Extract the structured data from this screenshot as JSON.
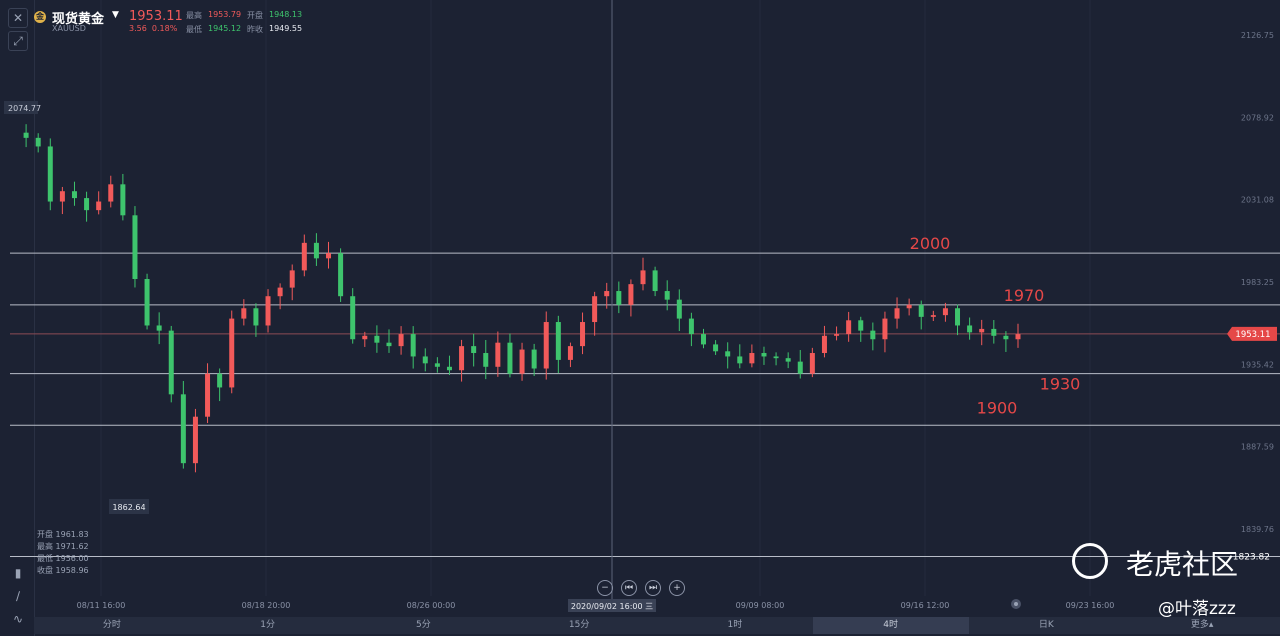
{
  "header": {
    "instrument_name": "现货黄金",
    "instrument_code": "XAUUSD",
    "coin_glyph": "金",
    "last_price": "1953.11",
    "change": "3.56",
    "change_pct": "0.18%",
    "high_label": "最高",
    "high_value": "1953.79",
    "low_label": "最低",
    "low_value": "1945.12",
    "open_label": "开盘",
    "open_value": "1948.13",
    "prev_close_label": "昨收",
    "prev_close_value": "1949.55"
  },
  "ohlc_panel": {
    "open": "开盘 1961.83",
    "high": "最高 1971.62",
    "low": "最低 1956.00",
    "close": "收盘 1958.96"
  },
  "chart_data": {
    "type": "candlestick",
    "y_axis_ticks": [
      "2126.75",
      "2078.92",
      "2031.08",
      "1983.25",
      "1935.42",
      "1887.59",
      "1839.76"
    ],
    "y_axis_tick_values": [
      2126.75,
      2078.92,
      2031.08,
      1983.25,
      1935.42,
      1887.59,
      1839.76
    ],
    "x_axis_labels": [
      "08/11 16:00",
      "08/18 20:00",
      "08/26 00:00",
      "09/09 08:00",
      "09/16 12:00",
      "09/23 16:00"
    ],
    "crosshair_x_label": "2020/09/02 16:00 三",
    "current_price_tag": "1953.11",
    "max_marker": "2074.77",
    "min_marker": "1862.64",
    "bottom_right_marker": "1823.82",
    "horizontal_lines": [
      2000,
      1970,
      1953.11,
      1930,
      1900,
      1823.82
    ],
    "annotations": [
      {
        "text": "2000",
        "value": 2000
      },
      {
        "text": "1970",
        "value": 1970
      },
      {
        "text": "1930",
        "value": 1930
      },
      {
        "text": "1900",
        "value": 1900
      }
    ],
    "up_color": "#f25a5a",
    "down_color": "#3ec46d",
    "close_path": [
      2070,
      2067,
      2062,
      2030,
      2036,
      2032,
      2025,
      2030,
      2040,
      2022,
      1985,
      1958,
      1955,
      1918,
      1878,
      1905,
      1930,
      1922,
      1962,
      1968,
      1958,
      1975,
      1980,
      1990,
      2006,
      1997,
      2000,
      1975,
      1950,
      1952,
      1948,
      1946,
      1953,
      1940,
      1936,
      1934,
      1932,
      1946,
      1942,
      1934,
      1948,
      1930,
      1944,
      1933,
      1960,
      1938,
      1946,
      1960,
      1975,
      1978,
      1970,
      1982,
      1990,
      1978,
      1973,
      1962,
      1953,
      1947,
      1943,
      1940,
      1936,
      1942,
      1940,
      1939,
      1937,
      1930,
      1942,
      1952,
      1953,
      1961,
      1955,
      1950,
      1962,
      1968,
      1970,
      1963,
      1964,
      1968,
      1958,
      1954,
      1956,
      1952,
      1950,
      1953
    ]
  },
  "toolbar": {
    "nav_zoom_out": "−",
    "nav_prev": "⏮",
    "nav_next": "⏭",
    "nav_zoom_in": "+"
  },
  "tabs": [
    "分时",
    "1分",
    "5分",
    "15分",
    "1时",
    "4时",
    "日K",
    "更多▴"
  ],
  "active_tab": "4时",
  "watermark": {
    "brand": "老虎社区",
    "user": "@叶落zzz"
  },
  "colors": {
    "background": "#1c2233",
    "up": "#f25a5a",
    "down": "#3ec46d",
    "grid_line": "#b8bdc8",
    "annotation": "#e54848"
  }
}
